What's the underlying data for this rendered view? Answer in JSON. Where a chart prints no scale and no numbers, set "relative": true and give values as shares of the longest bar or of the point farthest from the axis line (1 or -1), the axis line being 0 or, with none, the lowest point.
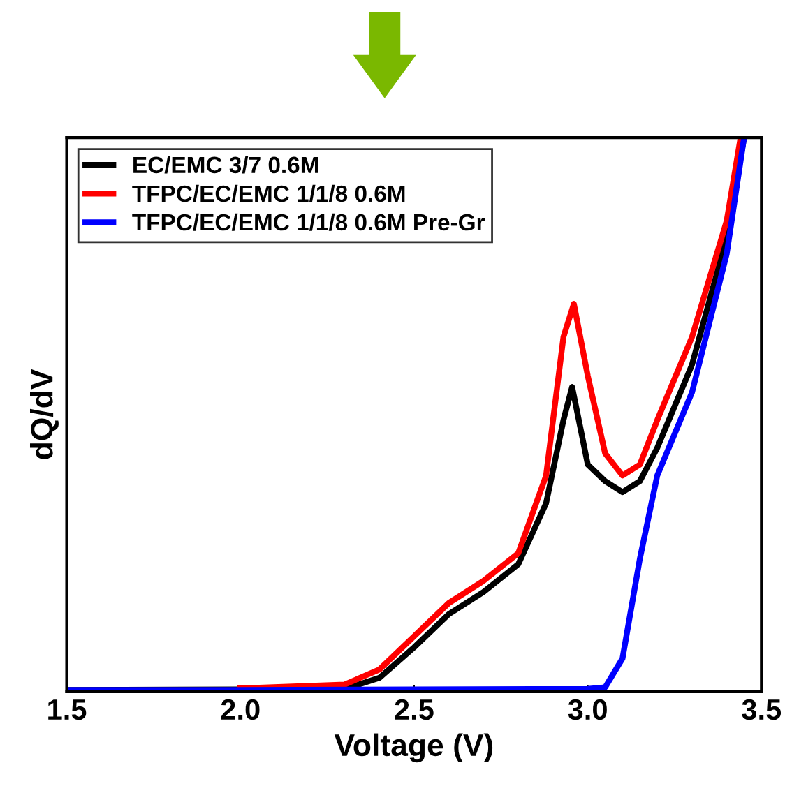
{
  "chart_data": {
    "type": "line",
    "xlabel": "Voltage (V)",
    "ylabel": "dQ/dV",
    "relative": true,
    "xlim": [
      1.5,
      3.5
    ],
    "xticks": [
      {
        "value": 1.5,
        "label": "1.5"
      },
      {
        "value": 2.0,
        "label": "2.0"
      },
      {
        "value": 2.5,
        "label": "2.5"
      },
      {
        "value": 3.0,
        "label": "3.0"
      },
      {
        "value": 3.5,
        "label": "3.5"
      }
    ],
    "legend": "top left",
    "grid": false,
    "series": [
      {
        "name": "EC/EMC 3/7 0.6M",
        "color": "#000000",
        "x": [
          1.5,
          2.0,
          2.3,
          2.4,
          2.5,
          2.6,
          2.7,
          2.8,
          2.88,
          2.93,
          2.955,
          3.0,
          3.05,
          3.1,
          3.15,
          3.2,
          3.3,
          3.4,
          3.45
        ],
        "values": [
          0.003,
          0.004,
          0.005,
          0.025,
          0.08,
          0.14,
          0.18,
          0.23,
          0.34,
          0.49,
          0.55,
          0.41,
          0.38,
          0.36,
          0.38,
          0.44,
          0.59,
          0.82,
          1.0
        ]
      },
      {
        "name": "TFPC/EC/EMC 1/1/8 0.6M",
        "color": "#ff0000",
        "x": [
          2.0,
          2.3,
          2.4,
          2.5,
          2.6,
          2.7,
          2.8,
          2.88,
          2.93,
          2.96,
          3.0,
          3.05,
          3.1,
          3.15,
          3.2,
          3.3,
          3.4,
          3.44
        ],
        "values": [
          0.006,
          0.013,
          0.04,
          0.1,
          0.16,
          0.2,
          0.25,
          0.39,
          0.64,
          0.7,
          0.57,
          0.43,
          0.39,
          0.41,
          0.49,
          0.64,
          0.85,
          1.0
        ]
      },
      {
        "name": "TFPC/EC/EMC 1/1/8 0.6M Pre-Gr",
        "color": "#0000ff",
        "x": [
          1.5,
          2.0,
          2.5,
          3.0,
          3.05,
          3.1,
          3.15,
          3.2,
          3.3,
          3.4,
          3.45
        ],
        "values": [
          0.003,
          0.003,
          0.004,
          0.005,
          0.008,
          0.06,
          0.24,
          0.39,
          0.54,
          0.79,
          1.0
        ]
      }
    ]
  }
}
